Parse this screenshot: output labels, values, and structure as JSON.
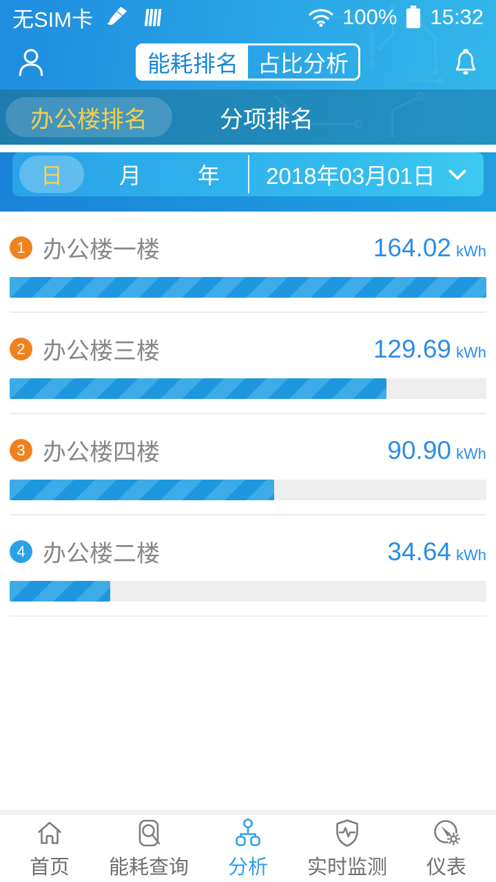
{
  "status_bar": {
    "carrier": "无SIM卡",
    "battery_level": "100%",
    "time": "15:32"
  },
  "header": {
    "tabs": [
      {
        "label": "能耗排名"
      },
      {
        "label": "占比分析"
      }
    ],
    "active_tab": "能耗排名"
  },
  "sub_tabs": {
    "tabs": [
      {
        "label": "办公楼排名"
      },
      {
        "label": "分项排名"
      }
    ],
    "active": "办公楼排名"
  },
  "period_selector": {
    "options": [
      "日",
      "月",
      "年"
    ],
    "active": "日",
    "date": "2018年03月01日"
  },
  "ranking": {
    "unit": "kWh",
    "max_value": 164.02,
    "items": [
      {
        "rank": "1",
        "name": "办公楼一楼",
        "value": "164.02",
        "badge_color": "#f0821e"
      },
      {
        "rank": "2",
        "name": "办公楼三楼",
        "value": "129.69",
        "badge_color": "#f0821e"
      },
      {
        "rank": "3",
        "name": "办公楼四楼",
        "value": "90.90",
        "badge_color": "#f0821e"
      },
      {
        "rank": "4",
        "name": "办公楼二楼",
        "value": "34.64",
        "badge_color": "#29a1e9"
      }
    ]
  },
  "tab_bar": {
    "items": [
      {
        "label": "首页"
      },
      {
        "label": "能耗查询"
      },
      {
        "label": "分析"
      },
      {
        "label": "实时监测"
      },
      {
        "label": "仪表"
      }
    ],
    "active": "分析"
  },
  "colors": {
    "accent_blue": "#2b8de6",
    "bar_stripe_light": "#3dabe8",
    "bar_stripe_dark": "#1f97de",
    "highlight_yellow": "#f7d254",
    "rank_badge_orange": "#f0821e",
    "rank_badge_blue": "#29a1e9"
  }
}
